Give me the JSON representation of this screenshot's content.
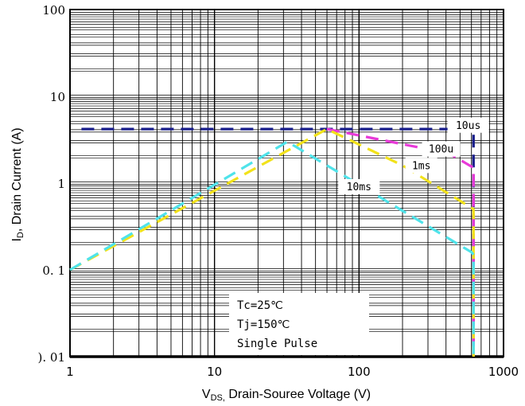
{
  "chart_data": {
    "type": "line",
    "x_scale": "log",
    "y_scale": "log",
    "xlim": [
      1,
      1000
    ],
    "ylim": [
      0.01,
      100
    ],
    "grid": true,
    "x_ticks": [
      "1",
      "10",
      "100",
      "1000"
    ],
    "y_ticks": [
      "100",
      "10",
      "1",
      "0. 1",
      "). 01"
    ],
    "xlabel": {
      "main": "V",
      "sub": "DS,",
      "rest": " Drain-Souree Voltage (V)"
    },
    "ylabel": {
      "main": "I",
      "sub": "D",
      "rest": ", Drain Current (A)"
    },
    "series": [
      {
        "name": "10us",
        "color": "#1a1f8c",
        "x": [
          1.2,
          620,
          620
        ],
        "y": [
          4.2,
          4.2,
          0.006
        ]
      },
      {
        "name": "100u",
        "color": "#e83ad8",
        "x": [
          60,
          420,
          620,
          620
        ],
        "y": [
          4.2,
          2.2,
          1.5,
          0.006
        ]
      },
      {
        "name": "1ms",
        "color": "#f2e21a",
        "x": [
          1,
          60,
          200,
          600,
          620,
          620
        ],
        "y": [
          0.1,
          4.2,
          1.6,
          0.52,
          0.5,
          0.006
        ]
      },
      {
        "name": "10ms",
        "color": "#4fe3ea",
        "x": [
          1,
          32,
          600,
          620,
          620
        ],
        "y": [
          0.1,
          3.0,
          0.16,
          0.15,
          0.006
        ]
      }
    ],
    "conditions": [
      "Tc=25℃",
      "Tj=150℃",
      "Single Pulse"
    ]
  }
}
